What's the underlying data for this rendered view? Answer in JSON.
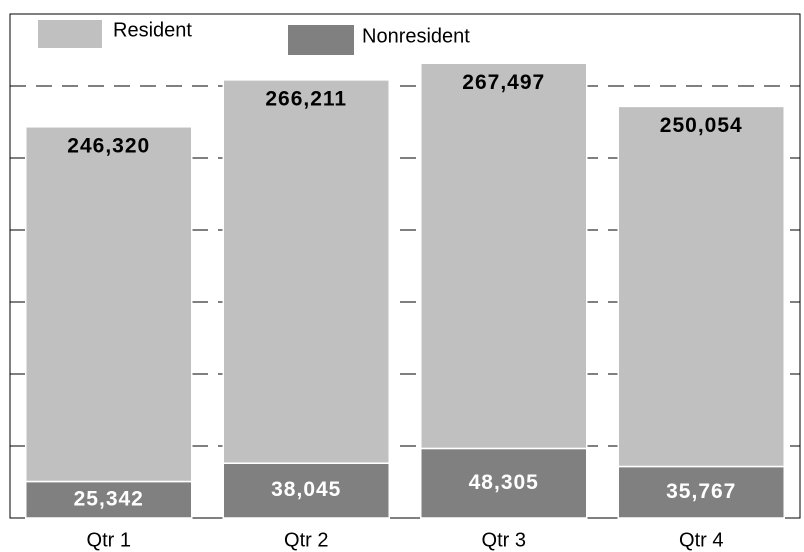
{
  "chart_data": {
    "type": "stacked_bar",
    "categories": [
      "Qtr 1",
      "Qtr 2",
      "Qtr 3",
      "Qtr 4"
    ],
    "series": [
      {
        "name": "Resident",
        "color": "#c0c0c0",
        "values": [
          246320,
          266211,
          267497,
          250054
        ],
        "value_labels": [
          "246,320",
          "266,211",
          "267,497",
          "250,054"
        ]
      },
      {
        "name": "Nonresident",
        "color": "#808080",
        "values": [
          25342,
          38045,
          48305,
          35767
        ],
        "value_labels": [
          "25,342",
          "38,045",
          "48,305",
          "35,767"
        ]
      }
    ],
    "ylim": [
      0,
      350000
    ],
    "yticks": [
      0,
      50000,
      100000,
      150000,
      200000,
      250000,
      300000,
      350000
    ],
    "grid": true
  }
}
